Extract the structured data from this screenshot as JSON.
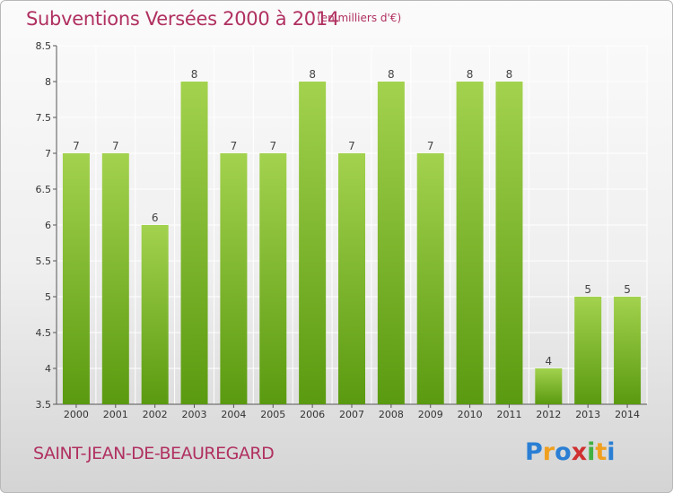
{
  "header": {
    "title": "Subventions Versées 2000 à 2014",
    "unit": "(en milliers d'€)"
  },
  "footer": {
    "commune": "SAINT-JEAN-DE-BEAUREGARD",
    "logo_letters": [
      "P",
      "r",
      "o",
      "x",
      "i",
      "t",
      "i"
    ],
    "logo_colors": [
      "#2a7fd4",
      "#f0a020",
      "#2a7fd4",
      "#d03030",
      "#40b040",
      "#f0a020",
      "#2a7fd4"
    ]
  },
  "colors": {
    "bar_top": "#a3d24e",
    "bar_bottom": "#5a9a10",
    "grid": "#ffffff"
  },
  "chart_data": {
    "type": "bar",
    "title": "Subventions Versées 2000 à 2014",
    "xlabel": "",
    "ylabel": "",
    "categories": [
      "2000",
      "2001",
      "2002",
      "2003",
      "2004",
      "2005",
      "2006",
      "2007",
      "2008",
      "2009",
      "2010",
      "2011",
      "2012",
      "2013",
      "2014"
    ],
    "values": [
      7,
      7,
      6,
      8,
      7,
      7,
      8,
      7,
      8,
      7,
      8,
      8,
      4,
      5,
      5
    ],
    "ylim": [
      3.5,
      8.5
    ],
    "yticks": [
      "3.5",
      "4",
      "4.5",
      "5",
      "5.5",
      "6",
      "6.5",
      "7",
      "7.5",
      "8",
      "8.5"
    ],
    "grid": true,
    "legend": "none"
  }
}
